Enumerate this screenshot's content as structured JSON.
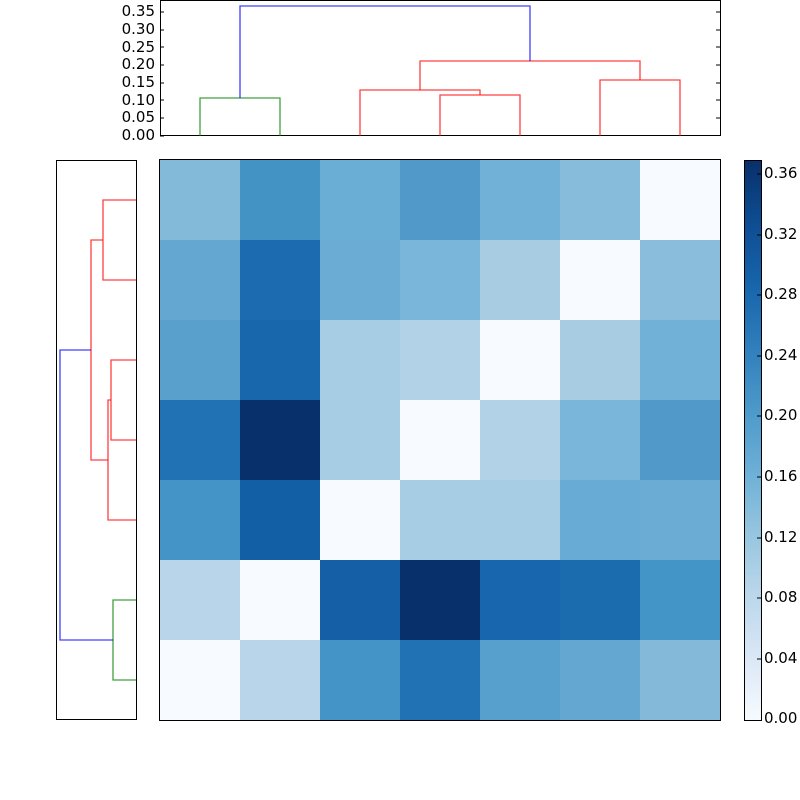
{
  "chart_data": [
    {
      "type": "heatmap",
      "title": "",
      "xlabel": "",
      "ylabel": "",
      "rows": 7,
      "cols": 7,
      "colormap": "Blues",
      "vmin": 0.0,
      "vmax": 0.37,
      "values": [
        [
          0.15,
          0.22,
          0.18,
          0.21,
          0.17,
          0.15,
          0.0
        ],
        [
          0.19,
          0.28,
          0.18,
          0.165,
          0.12,
          0.0,
          0.15
        ],
        [
          0.2,
          0.29,
          0.12,
          0.11,
          0.0,
          0.12,
          0.17
        ],
        [
          0.27,
          0.37,
          0.12,
          0.0,
          0.11,
          0.165,
          0.21
        ],
        [
          0.22,
          0.3,
          0.0,
          0.12,
          0.12,
          0.18,
          0.18
        ],
        [
          0.1,
          0.0,
          0.3,
          0.37,
          0.29,
          0.28,
          0.22
        ],
        [
          0.0,
          0.1,
          0.22,
          0.27,
          0.2,
          0.19,
          0.15
        ]
      ],
      "colors": [
        [
          "#84bad9",
          "#4393c5",
          "#6baed5",
          "#5199c9",
          "#71b0d7",
          "#88bcdb",
          "#f7fbff"
        ],
        [
          "#64a8d2",
          "#1c6bb0",
          "#6bacd5",
          "#7ab5da",
          "#a8cde3",
          "#f7fbff",
          "#8abcdb"
        ],
        [
          "#59a0cd",
          "#1867ad",
          "#a6cde3",
          "#b2d2e7",
          "#f7fbff",
          "#a8cde3",
          "#71b0d7"
        ],
        [
          "#2171b5",
          "#08306b",
          "#a6cde3",
          "#f7fbff",
          "#b2d2e7",
          "#7ab5da",
          "#5199c9"
        ],
        [
          "#4594c7",
          "#135fa6",
          "#f7fbff",
          "#a6cde3",
          "#a6cde3",
          "#68abd5",
          "#6bacd5"
        ],
        [
          "#b8d5ea",
          "#f7fbff",
          "#145fa6",
          "#08306b",
          "#1866ad",
          "#1b6baf",
          "#4394c7"
        ],
        [
          "#f7fbff",
          "#b8d5ea",
          "#4594c7",
          "#2171b5",
          "#57a0cd",
          "#64a8d2",
          "#84b9d9"
        ]
      ]
    },
    {
      "type": "dendrogram",
      "orientation": "top",
      "ylim": [
        0.0,
        0.385
      ],
      "yticks": [
        "0.00",
        "0.05",
        "0.10",
        "0.15",
        "0.20",
        "0.25",
        "0.30",
        "0.35"
      ],
      "links": [
        {
          "left": 0.5,
          "right": 1.5,
          "height": 0.108,
          "color": "#008000"
        },
        {
          "left": 3.5,
          "right": 4.5,
          "height": 0.115,
          "color": "#ff0000"
        },
        {
          "left": 2.5,
          "right": 4.0,
          "height": 0.13,
          "color": "#ff0000"
        },
        {
          "left": 5.5,
          "right": 6.5,
          "height": 0.157,
          "color": "#ff0000"
        },
        {
          "left": 3.25,
          "right": 6.0,
          "height": 0.215,
          "color": "#ff0000"
        },
        {
          "left": 1.0,
          "right": 4.625,
          "height": 0.368,
          "color": "#0000ff"
        }
      ]
    },
    {
      "type": "dendrogram",
      "orientation": "left",
      "links": [
        {
          "top": 0.5,
          "bottom": 1.5,
          "depth": 0.42,
          "color": "#ff0000"
        },
        {
          "top": 2.5,
          "bottom": 3.5,
          "depth": 0.31,
          "color": "#ff0000"
        },
        {
          "top": 3.0,
          "bottom": 4.5,
          "depth": 0.34,
          "color": "#ff0000"
        },
        {
          "top": 1.0,
          "bottom": 3.75,
          "depth": 0.55,
          "color": "#ff0000"
        },
        {
          "top": 5.5,
          "bottom": 6.5,
          "depth": 0.28,
          "color": "#008000"
        },
        {
          "top": 2.375,
          "bottom": 6.0,
          "depth": 0.95,
          "color": "#0000ff"
        }
      ]
    }
  ],
  "colorbar": {
    "ticks": [
      "0.00",
      "0.04",
      "0.08",
      "0.12",
      "0.16",
      "0.20",
      "0.24",
      "0.28",
      "0.32",
      "0.36"
    ],
    "vmin": 0.0,
    "vmax": 0.37,
    "gradient_top": "#08306b",
    "gradient_bottom": "#f7fbff"
  },
  "top_dendrogram_axis": {
    "ticks": [
      "0.00",
      "0.05",
      "0.10",
      "0.15",
      "0.20",
      "0.25",
      "0.30",
      "0.35"
    ]
  }
}
